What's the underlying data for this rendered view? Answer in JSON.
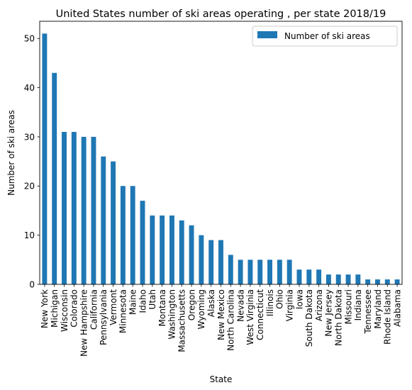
{
  "chart_data": {
    "type": "bar",
    "title": "United States number of ski areas operating , per state 2018/19",
    "xlabel": "State",
    "ylabel": "Number of ski areas",
    "ylim": [
      0,
      53.5
    ],
    "yticks": [
      0,
      10,
      20,
      30,
      40,
      50
    ],
    "grid": false,
    "legend_position": "top-right",
    "categories": [
      "New York",
      "Michigan",
      "Wisconsin",
      "Colorado",
      "New Hampshire",
      "California",
      "Pennsylvania",
      "Vermont",
      "Minnesota",
      "Maine",
      "Idaho",
      "Utah",
      "Montana",
      "Washington",
      "Massachusetts",
      "Oregon",
      "Wyoming",
      "Alaska",
      "New Mexico",
      "North Carolina",
      "Nevada",
      "West Virginia",
      "Connecticut",
      "Illinois",
      "Ohio",
      "Virginia",
      "Iowa",
      "South Dakota",
      "Arizona",
      "New Jersey",
      "North Dakota",
      "Missouri",
      "Indiana",
      "Tennessee",
      "Maryland",
      "Rhode Island",
      "Alabama"
    ],
    "series": [
      {
        "name": "Number of ski areas",
        "color": "#1f77b4",
        "values": [
          51,
          43,
          31,
          31,
          30,
          30,
          26,
          25,
          20,
          20,
          17,
          14,
          14,
          14,
          13,
          12,
          10,
          9,
          9,
          6,
          5,
          5,
          5,
          5,
          5,
          5,
          3,
          3,
          3,
          2,
          2,
          2,
          2,
          1,
          1,
          1,
          1
        ]
      }
    ]
  }
}
